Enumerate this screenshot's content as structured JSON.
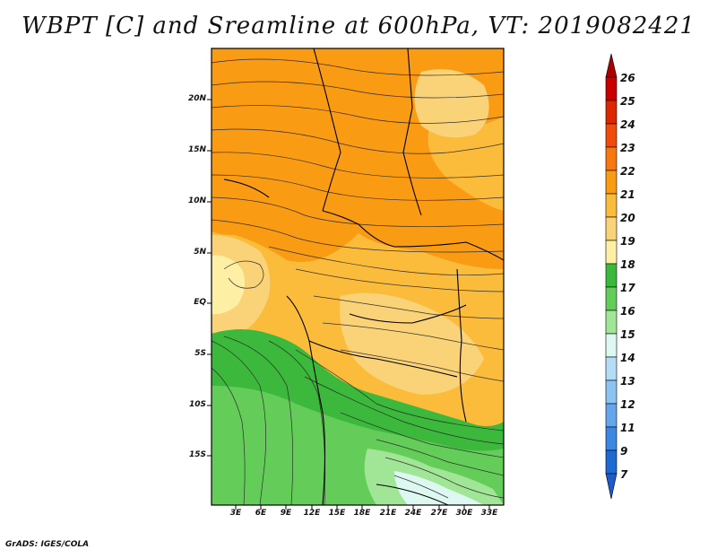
{
  "title": "WBPT [C] and Sreamline at 600hPa, VT: 2019082421",
  "map": {
    "lat_labels": [
      "20N",
      "15N",
      "10N",
      "5N",
      "EQ",
      "5S",
      "10S",
      "15S"
    ],
    "lon_labels": [
      "3E",
      "6E",
      "9E",
      "12E",
      "15E",
      "18E",
      "21E",
      "24E",
      "27E",
      "30E",
      "33E"
    ]
  },
  "colorbar": {
    "labels": [
      "26",
      "25",
      "24",
      "23",
      "22",
      "21",
      "20",
      "19",
      "18",
      "17",
      "16",
      "15",
      "14",
      "13",
      "12",
      "11",
      "9",
      "7"
    ],
    "colors": [
      "#c80000",
      "#dc2800",
      "#f04b0a",
      "#f7780f",
      "#fa9b14",
      "#fbbc3c",
      "#fad278",
      "#fdf0a5",
      "#3cb93c",
      "#64cd5a",
      "#a0e696",
      "#dcf8f0",
      "#b4dcf5",
      "#8cc3f0",
      "#64a5eb",
      "#3c87e1",
      "#1e69d2"
    ]
  },
  "credit": "GrADS: IGES/COLA"
}
